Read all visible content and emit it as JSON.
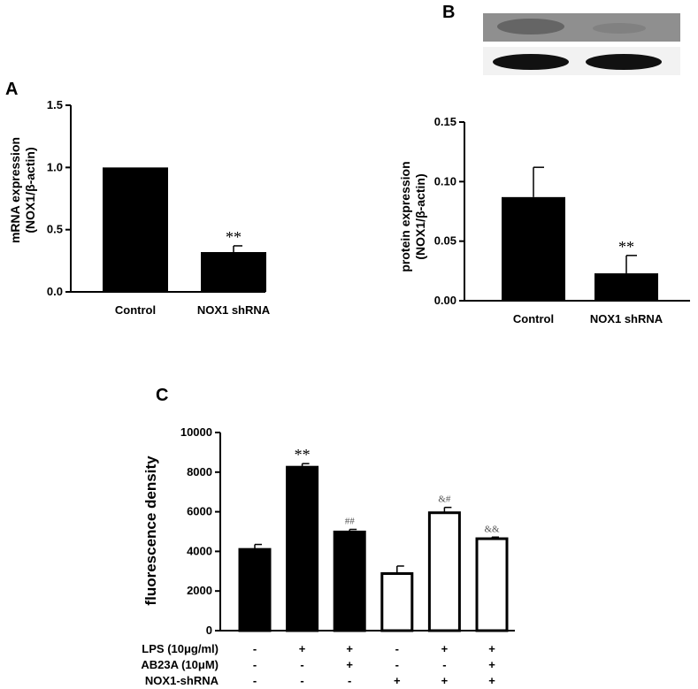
{
  "panels": {
    "a": "A",
    "b": "B",
    "c": "C"
  },
  "chart_data": [
    {
      "panel": "A",
      "type": "bar",
      "categories": [
        "Control",
        "NOX1 shRNA"
      ],
      "values": [
        1.0,
        0.32
      ],
      "errors": [
        0,
        0.05
      ],
      "significance": [
        "",
        "**"
      ],
      "ylabel_line1": "mRNA expression",
      "ylabel_line2": "(NOX1/β-actin)",
      "yticks": [
        "0.0",
        "0.5",
        "1.0",
        "1.5"
      ],
      "ylim": [
        0,
        1.5
      ],
      "bar_color": "#000000"
    },
    {
      "panel": "B",
      "type": "bar",
      "categories": [
        "Control",
        "NOX1 shRNA"
      ],
      "values": [
        0.087,
        0.023
      ],
      "errors": [
        0.025,
        0.015
      ],
      "significance": [
        "",
        "**"
      ],
      "ylabel_line1": "protein expression",
      "ylabel_line2": "(NOX1/β-actin)",
      "yticks": [
        "0.00",
        "0.05",
        "0.10",
        "0.15"
      ],
      "ylim": [
        0,
        0.15
      ],
      "bar_color": "#000000",
      "blot_image": "western-blot-bands"
    },
    {
      "panel": "C",
      "type": "bar",
      "values": [
        4100,
        8250,
        4980,
        2880,
        5950,
        4640
      ],
      "errors": [
        250,
        180,
        130,
        380,
        270,
        80
      ],
      "fills": [
        "#000000",
        "#000000",
        "#000000",
        "#ffffff",
        "#ffffff",
        "#ffffff"
      ],
      "significance": [
        "",
        "**",
        "##",
        "",
        "&#",
        "&&"
      ],
      "ylabel": "fluorescence density",
      "yticks": [
        "0",
        "2000",
        "4000",
        "6000",
        "8000",
        "10000"
      ],
      "ylim": [
        0,
        10000
      ],
      "conditions": [
        {
          "label": "LPS (10μg/ml)",
          "signs": [
            "-",
            "+",
            "+",
            "-",
            "+",
            "+"
          ]
        },
        {
          "label": "AB23A (10μM)",
          "signs": [
            "-",
            "-",
            "+",
            "-",
            "-",
            "+"
          ]
        },
        {
          "label": "NOX1-shRNA",
          "signs": [
            "-",
            "-",
            "-",
            "+",
            "+",
            "+"
          ]
        }
      ]
    }
  ]
}
